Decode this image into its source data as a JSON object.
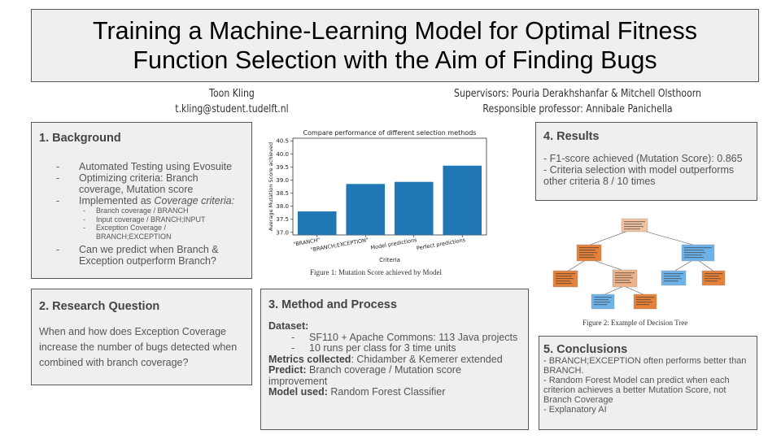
{
  "title": {
    "line1": "Training a Machine-Learning Model for Optimal Fitness",
    "line2": "Function Selection with the Aim of Finding Bugs"
  },
  "author": {
    "name": "Toon Kling",
    "email": "t.kling@student.tudelft.nl"
  },
  "supervisors": {
    "line1": "Supervisors: Pouria Derakhshanfar & Mitchell Olsthoorn",
    "line2": "Responsible professor: Annibale Panichella"
  },
  "background": {
    "heading": "1. Background",
    "items": [
      "Automated Testing using Evosuite",
      "Optimizing criteria: Branch coverage, Mutation score"
    ],
    "implemented_prefix": "Implemented as ",
    "implemented_emph": "Coverage criteria:",
    "sub_items": [
      "Branch coverage / BRANCH",
      "Input coverage / BRANCH;INPUT",
      "Exception Coverage / BRANCH;EXCEPTION"
    ],
    "question": "Can we predict when Branch & Exception outperform Branch?"
  },
  "research_question": {
    "heading": "2. Research Question",
    "text": "When and how does Exception Coverage increase the number of bugs detected when combined with branch coverage?"
  },
  "method": {
    "heading": "3. Method and Process",
    "dataset_label": "Dataset:",
    "dataset_items": [
      "SF110 + Apache Commons: 113 Java projects",
      "10 runs per class for 3 time units"
    ],
    "metrics_label": "Metrics collected",
    "metrics_text": ": Chidamber & Kemerer extended",
    "predict_label": "Predict:",
    "predict_text": " Branch coverage / Mutation score improvement",
    "model_label": "Model used:",
    "model_text": " Random Forest Classifier"
  },
  "results": {
    "heading": "4. Results",
    "line1": "- F1-score achieved (Mutation Score): 0.865",
    "line2": "- Criteria selection with model outperforms other criteria 8 / 10 times"
  },
  "conclusions": {
    "heading": "5. Conclusions",
    "line1": "- BRANCH;EXCEPTION often performs better than BRANCH.",
    "line2": "- Random Forest Model can predict when each criterion achieves a better Mutation Score, not Branch Coverage",
    "line3": "- Explanatory AI"
  },
  "figure1_caption": "Figure 1: Mutation Score achieved by Model",
  "figure2_caption": "Figure 2: Example of Decision Tree",
  "colors": {
    "bar": "#1f77b4",
    "tree_orange": "#e58139",
    "tree_light_orange": "#eeb28a",
    "tree_blue": "#6db3ea",
    "box_fill": "#efefef",
    "box_border": "#595959"
  },
  "chart_data": {
    "type": "bar",
    "title": "Compare performance of different selection methods",
    "xlabel": "Criteria",
    "ylabel": "Average Mutation Score achieved",
    "categories": [
      "\"BRANCH\"",
      "\"BRANCH;EXCEPTION\"",
      "Model predictions",
      "Perfect predictions"
    ],
    "values": [
      37.8,
      38.85,
      38.93,
      39.55
    ],
    "ylim": [
      36.9,
      40.6
    ],
    "yticks": [
      37.0,
      37.5,
      38.0,
      38.5,
      39.0,
      39.5,
      40.0,
      40.5
    ],
    "grid": false
  }
}
